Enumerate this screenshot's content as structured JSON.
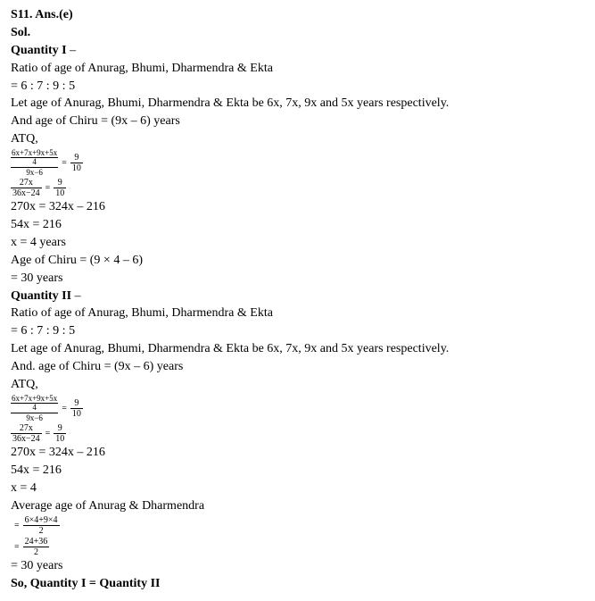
{
  "answer_header": "S11. Ans.(e)",
  "sol_label": "Sol.",
  "quantity1": {
    "title": "Quantity I",
    "dash": " –",
    "ratio_text": "Ratio of age of Anurag, Bhumi, Dharmendra & Ekta",
    "ratio_value": "= 6 : 7 : 9 : 5",
    "let_age": "Let age of Anurag, Bhumi, Dharmendra & Ekta be 6x, 7x, 9x and 5x years respectively.",
    "and_age": "And age of Chiru  = (9x – 6) years",
    "atq": "ATQ,",
    "eq1": {
      "outer_num_num": "6x+7x+9x+5x",
      "outer_num_den": "4",
      "outer_den_num": "9x−6",
      "outer_den_den": "1",
      "rhs_num": "9",
      "rhs_den": "10"
    },
    "eq2": {
      "lhs_num": "27x",
      "lhs_den": "36x−24",
      "rhs_num": "9",
      "rhs_den": "10"
    },
    "step1": "270x = 324x – 216",
    "step2": "54x = 216",
    "step3": "x = 4 years",
    "step4": "Age of Chiru = (9 × 4 – 6)",
    "step5": "= 30 years"
  },
  "quantity2": {
    "title": "Quantity II",
    "dash": " –",
    "ratio_text": "Ratio of age of Anurag, Bhumi, Dharmendra & Ekta",
    "ratio_value": "= 6 : 7 : 9 : 5",
    "let_age": "Let age of Anurag, Bhumi, Dharmendra & Ekta be 6x, 7x, 9x and 5x years respectively.",
    "and_age": "And. age of Chiru = (9x – 6) years",
    "atq": "ATQ,",
    "eq1": {
      "outer_num_num": "6x+7x+9x+5x",
      "outer_num_den": "4",
      "outer_den_num": "9x−6",
      "outer_den_den": "1",
      "rhs_num": "9",
      "rhs_den": "10"
    },
    "eq2": {
      "lhs_num": "27x",
      "lhs_den": "36x−24",
      "rhs_num": "9",
      "rhs_den": "10"
    },
    "step1": "270x = 324x – 216",
    "step2": "54x = 216",
    "step3": "x = 4",
    "avg_label": "Average age of Anurag & Dharmendra",
    "avg_eq1": {
      "num": "6×4+9×4",
      "den": "2"
    },
    "avg_eq2": {
      "num": "24+36",
      "den": "2"
    },
    "result": "= 30 years"
  },
  "conclusion": "So, Quantity I = Quantity II"
}
